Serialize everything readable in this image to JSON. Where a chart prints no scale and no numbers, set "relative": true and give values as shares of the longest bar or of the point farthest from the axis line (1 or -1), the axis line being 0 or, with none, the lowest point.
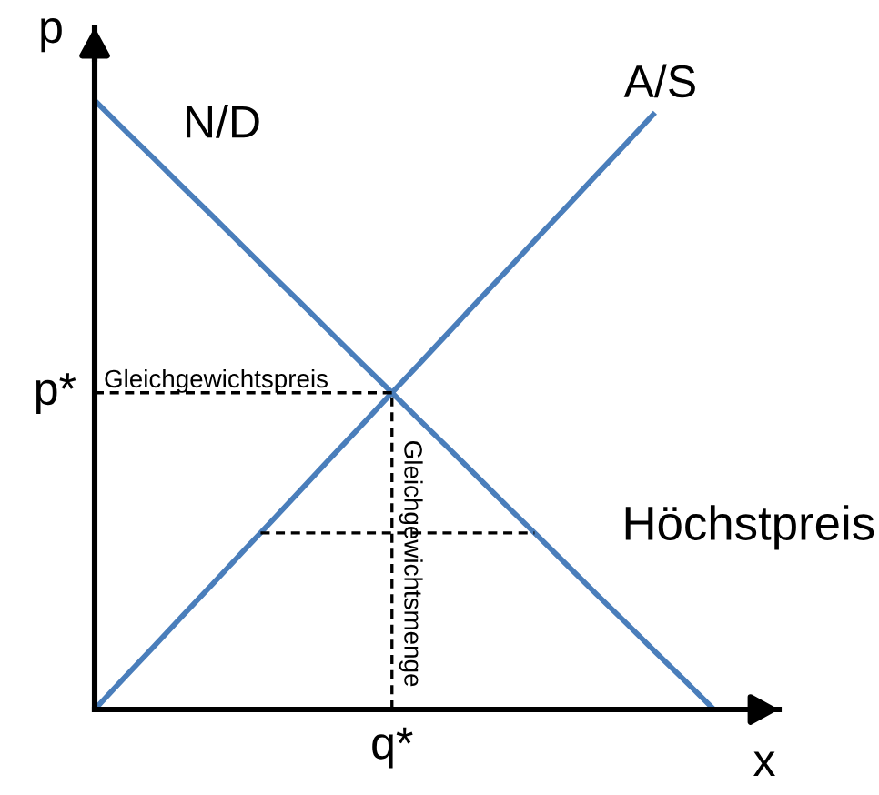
{
  "chart_data": {
    "type": "line",
    "relative": true,
    "xlabel": "x",
    "ylabel": "p",
    "line_style": "solid",
    "categories": [
      null,
      null,
      null,
      null,
      null,
      null,
      null,
      null,
      null,
      null,
      null,
      null,
      null,
      null,
      null,
      null,
      null,
      null,
      null,
      null,
      null,
      null
    ],
    "series": [
      {
        "name": "N/D",
        "color": "#4a7ebb",
        "values": [
          1,
          0.952,
          0.905,
          0.857,
          0.81,
          0.762,
          0.714,
          0.667,
          0.619,
          0.571,
          0.524,
          0.476,
          0.429,
          0.381,
          0.333,
          0.286,
          0.238,
          0.19,
          0.143,
          0.095,
          0.048,
          0
        ]
      },
      {
        "name": "A/S",
        "color": "#4a7ebb",
        "values": [
          0,
          0.052,
          0.103,
          0.155,
          0.206,
          0.258,
          0.309,
          0.361,
          0.413,
          0.464,
          0.516,
          0.567,
          0.619,
          0.671,
          0.722,
          0.774,
          0.825,
          0.877,
          0.928,
          0.98,
          null,
          null
        ]
      }
    ],
    "ref_lines": [
      {
        "axis": "y",
        "value": 0.52,
        "label": "p*",
        "color": "#000000",
        "line_style": "dashed"
      },
      {
        "axis": "y",
        "value": 0.29,
        "label": "Höchstpreis",
        "color": "#000000",
        "line_style": "dashed"
      }
    ],
    "annotations": [
      {
        "text": "Gleichgewichtspreis",
        "y": 0.52
      },
      "Gleichgewichtsmenge",
      "q*"
    ]
  }
}
